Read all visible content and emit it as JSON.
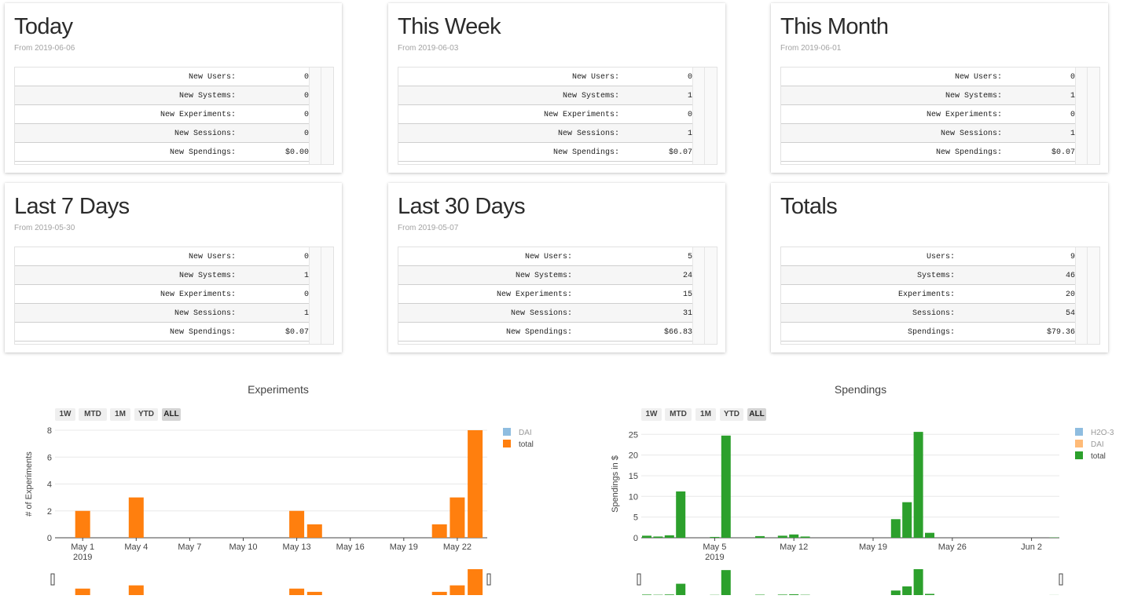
{
  "cards": [
    {
      "title": "Today",
      "subtitle": "From 2019-06-06",
      "rows": [
        {
          "label": "New Users:",
          "value": "0"
        },
        {
          "label": "New Systems:",
          "value": "0"
        },
        {
          "label": "New Experiments:",
          "value": "0"
        },
        {
          "label": "New Sessions:",
          "value": "0"
        },
        {
          "label": "New Spendings:",
          "value": "$0.00"
        }
      ]
    },
    {
      "title": "This Week",
      "subtitle": "From 2019-06-03",
      "rows": [
        {
          "label": "New Users:",
          "value": "0"
        },
        {
          "label": "New Systems:",
          "value": "1"
        },
        {
          "label": "New Experiments:",
          "value": "0"
        },
        {
          "label": "New Sessions:",
          "value": "1"
        },
        {
          "label": "New Spendings:",
          "value": "$0.07"
        }
      ]
    },
    {
      "title": "This Month",
      "subtitle": "From 2019-06-01",
      "rows": [
        {
          "label": "New Users:",
          "value": "0"
        },
        {
          "label": "New Systems:",
          "value": "1"
        },
        {
          "label": "New Experiments:",
          "value": "0"
        },
        {
          "label": "New Sessions:",
          "value": "1"
        },
        {
          "label": "New Spendings:",
          "value": "$0.07"
        }
      ]
    },
    {
      "title": "Last 7 Days",
      "subtitle": "From 2019-05-30",
      "rows": [
        {
          "label": "New Users:",
          "value": "0"
        },
        {
          "label": "New Systems:",
          "value": "1"
        },
        {
          "label": "New Experiments:",
          "value": "0"
        },
        {
          "label": "New Sessions:",
          "value": "1"
        },
        {
          "label": "New Spendings:",
          "value": "$0.07"
        }
      ]
    },
    {
      "title": "Last 30 Days",
      "subtitle": "From 2019-05-07",
      "rows": [
        {
          "label": "New Users:",
          "value": "5"
        },
        {
          "label": "New Systems:",
          "value": "24"
        },
        {
          "label": "New Experiments:",
          "value": "15"
        },
        {
          "label": "New Sessions:",
          "value": "31"
        },
        {
          "label": "New Spendings:",
          "value": "$66.83"
        }
      ]
    },
    {
      "title": "Totals",
      "subtitle": "",
      "rows": [
        {
          "label": "Users:",
          "value": "9"
        },
        {
          "label": "Systems:",
          "value": "46"
        },
        {
          "label": "Experiments:",
          "value": "20"
        },
        {
          "label": "Sessions:",
          "value": "54"
        },
        {
          "label": "Spendings:",
          "value": "$79.36"
        }
      ]
    }
  ],
  "range_buttons": [
    "1W",
    "MTD",
    "1M",
    "YTD",
    "ALL"
  ],
  "colors": {
    "dai": "#8fbde0",
    "total_orange": "#ff7f0e",
    "h2o3": "#8fbde0",
    "dai_light": "#ffbb78",
    "total_green": "#2ca02c"
  },
  "chart_data": [
    {
      "type": "bar",
      "title": "Experiments",
      "ylabel": "# of Experiments",
      "ylim": [
        0,
        8
      ],
      "yticks": [
        0,
        2,
        4,
        6,
        8
      ],
      "xticks": [
        "May 1",
        "May 4",
        "May 7",
        "May 10",
        "May 13",
        "May 16",
        "May 19",
        "May 22"
      ],
      "xtick_year": "2019",
      "legend": [
        "DAI",
        "total"
      ],
      "x": [
        "2019-05-01",
        "2019-05-04",
        "2019-05-13",
        "2019-05-14",
        "2019-05-21",
        "2019-05-22",
        "2019-05-23"
      ],
      "series": [
        {
          "name": "total",
          "values": [
            2,
            3,
            2,
            1,
            1,
            3,
            8
          ]
        }
      ]
    },
    {
      "type": "bar",
      "title": "Spendings",
      "ylabel": "Spendings in $",
      "ylim": [
        0,
        26
      ],
      "yticks": [
        0,
        5,
        10,
        15,
        20,
        25
      ],
      "xticks": [
        "May 5",
        "May 12",
        "May 19",
        "May 26",
        "Jun 2"
      ],
      "xtick_year": "2019",
      "legend": [
        "H2O-3",
        "DAI",
        "total"
      ],
      "x": [
        "2019-04-29",
        "2019-04-30",
        "2019-05-01",
        "2019-05-02",
        "2019-05-05",
        "2019-05-06",
        "2019-05-09",
        "2019-05-11",
        "2019-05-12",
        "2019-05-13",
        "2019-05-21",
        "2019-05-22",
        "2019-05-23",
        "2019-05-24",
        "2019-06-04"
      ],
      "series": [
        {
          "name": "total",
          "values": [
            0.5,
            0.3,
            0.6,
            11.2,
            0.2,
            24.7,
            0.4,
            0.5,
            0.8,
            0.3,
            4.5,
            8.6,
            25.6,
            1.2,
            0.07
          ]
        }
      ]
    }
  ]
}
